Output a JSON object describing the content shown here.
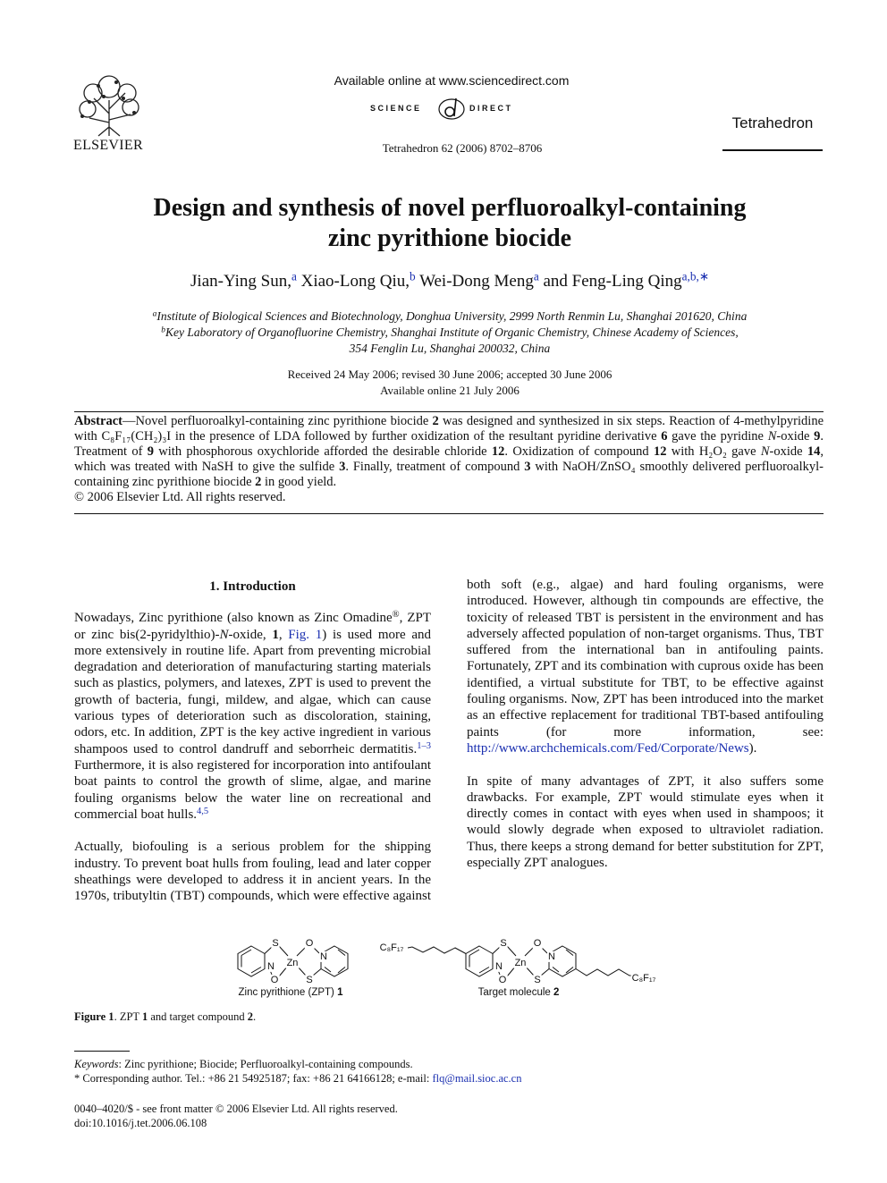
{
  "header": {
    "available_online": "Available online at www.sciencedirect.com",
    "science": "SCIENCE",
    "direct": "DIRECT",
    "publisher": "ELSEVIER",
    "citation": "Tetrahedron 62 (2006) 8702–8706",
    "journal": "Tetrahedron"
  },
  "title": [
    "Design and synthesis of novel perfluoroalkyl-containing",
    "zinc pyrithione biocide"
  ],
  "authors": [
    {
      "name": "Jian-Ying Sun,",
      "mark": "a"
    },
    {
      "name": "Xiao-Long Qiu,",
      "mark": "b"
    },
    {
      "name": "Wei-Dong Meng",
      "mark": "a"
    },
    {
      "name": "and Feng-Ling Qing",
      "mark": "a,b,∗"
    }
  ],
  "affiliations": [
    {
      "mark": "a",
      "lines": [
        "Institute of Biological Sciences and Biotechnology, Donghua University, 2999 North Renmin Lu, Shanghai 201620, China"
      ]
    },
    {
      "mark": "b",
      "lines": [
        "Key Laboratory of Organofluorine Chemistry, Shanghai Institute of Organic Chemistry, Chinese Academy of Sciences,",
        "354 Fenglin Lu, Shanghai 200032, China"
      ]
    }
  ],
  "dates": [
    "Received 24 May 2006; revised 30 June 2006; accepted 30 June 2006",
    "Available online 21 July 2006"
  ],
  "abstract": {
    "text": [
      {
        "b": "Abstract"
      },
      "—Novel perfluoroalkyl-containing zinc pyrithione biocide ",
      {
        "b": "2"
      },
      " was designed and synthesized in six steps. Reaction of 4-methylpyridine with C₈F₁₇(CH₂)₃I in the presence of LDA followed by further oxidization of the resultant pyridine derivative ",
      {
        "b": "6"
      },
      " gave the pyridine ",
      {
        "i": "N"
      },
      "-oxide ",
      {
        "b": "9"
      },
      ". Treatment of ",
      {
        "b": "9"
      },
      " with phosphorous oxychloride afforded the desirable chloride ",
      {
        "b": "12"
      },
      ". Oxidization of compound ",
      {
        "b": "12"
      },
      " with H₂O₂ gave ",
      {
        "i": "N"
      },
      "-oxide ",
      {
        "b": "14"
      },
      ", which was treated with NaSH to give the sulfide ",
      {
        "b": "3"
      },
      ". Finally, treatment of compound ",
      {
        "b": "3"
      },
      " with NaOH/ZnSO₄ smoothly delivered perfluoroalkyl-containing zinc pyrithione biocide ",
      {
        "b": "2"
      },
      " in good yield."
    ],
    "copyright": "© 2006 Elsevier Ltd. All rights reserved."
  },
  "section": {
    "heading": "1. Introduction",
    "paragraphs": [
      [
        "Nowadays, Zinc pyrithione (also known as Zinc Omadine",
        {
          "sup": "®"
        },
        ", ZPT or zinc bis(2-pyridylthio)-",
        {
          "i": "N"
        },
        "-oxide, ",
        {
          "b": "1"
        },
        ", ",
        {
          "link": "Fig. 1"
        },
        ") is used more and more extensively in routine life. Apart from preventing microbial degradation and deterioration of manufacturing starting materials such as plastics, polymers, and latexes, ZPT is used to prevent the growth of bacteria, fungi, mildew, and algae, which can cause various types of deterioration such as discoloration, staining, odors, etc. In addition, ZPT is the key active ingredient in various shampoos used to control dandruff and seborrheic dermatitis.",
        {
          "sup": "1–3"
        },
        " Furthermore, it is also registered for incorporation into antifoulant boat paints to control the growth of slime, algae, and marine fouling organisms below the water line on recreational and commercial boat hulls.",
        {
          "sup": "4,5"
        }
      ],
      [
        "Actually, biofouling is a serious problem for the shipping industry. To prevent boat hulls from fouling, lead and later copper sheathings were developed to address it in ancient years. In the 1970s, tributyltin (TBT) compounds, which were effective against both soft (e.g., algae) and hard fouling organisms, were introduced. However, although tin compounds are effective, the toxicity of released TBT is persistent in the environment and has adversely affected population of non-target organisms. Thus, TBT suffered from the international ban in antifouling paints. Fortunately, ZPT and its combination with cuprous oxide has been identified, a virtual substitute for TBT, to be effective against fouling organisms. Now, ZPT has been introduced into the market as an effective replacement for traditional TBT-based antifouling paints (for more information, see: ",
        {
          "link": "http://www.archchemicals.com/Fed/Corporate/News"
        },
        ")."
      ],
      [
        "In spite of many advantages of ZPT, it also suffers some drawbacks. For example, ZPT would stimulate eyes when it directly comes in contact with eyes when used in shampoos; it would slowly degrade when exposed to ultraviolet radiation. Thus, there keeps a strong demand for better substitution for ZPT, especially ZPT analogues."
      ]
    ]
  },
  "figure": {
    "structure_1": {
      "atoms": [
        "S",
        "Zn",
        "N",
        "O",
        "O",
        "S",
        "N"
      ],
      "label": [
        "Zinc pyrithione (ZPT) ",
        {
          "b": "1"
        }
      ]
    },
    "structure_2": {
      "atoms": [
        "S",
        "Zn",
        "N",
        "O",
        "O",
        "S",
        "N",
        "C₈F₁₇",
        "C₈F₁₇"
      ],
      "label": [
        "Target molecule ",
        {
          "b": "2"
        }
      ]
    },
    "caption": [
      {
        "b": "Figure 1"
      },
      ". ZPT ",
      {
        "b": "1"
      },
      " and target compound ",
      {
        "b": "2"
      },
      "."
    ]
  },
  "footnotes": {
    "keywords": [
      {
        "i": "Keywords"
      },
      ": Zinc pyrithione; Biocide; Perfluoroalkyl-containing compounds."
    ],
    "corresponding": [
      "* Corresponding author. Tel.: +86 21 54925187; fax: +86 21 64166128; e-mail: ",
      {
        "link": "flq@mail.sioc.ac.cn"
      }
    ],
    "front_matter": [
      "0040–4020/$ - see front matter © 2006 Elsevier Ltd. All rights reserved.",
      "doi:10.1016/j.tet.2006.06.108"
    ]
  }
}
